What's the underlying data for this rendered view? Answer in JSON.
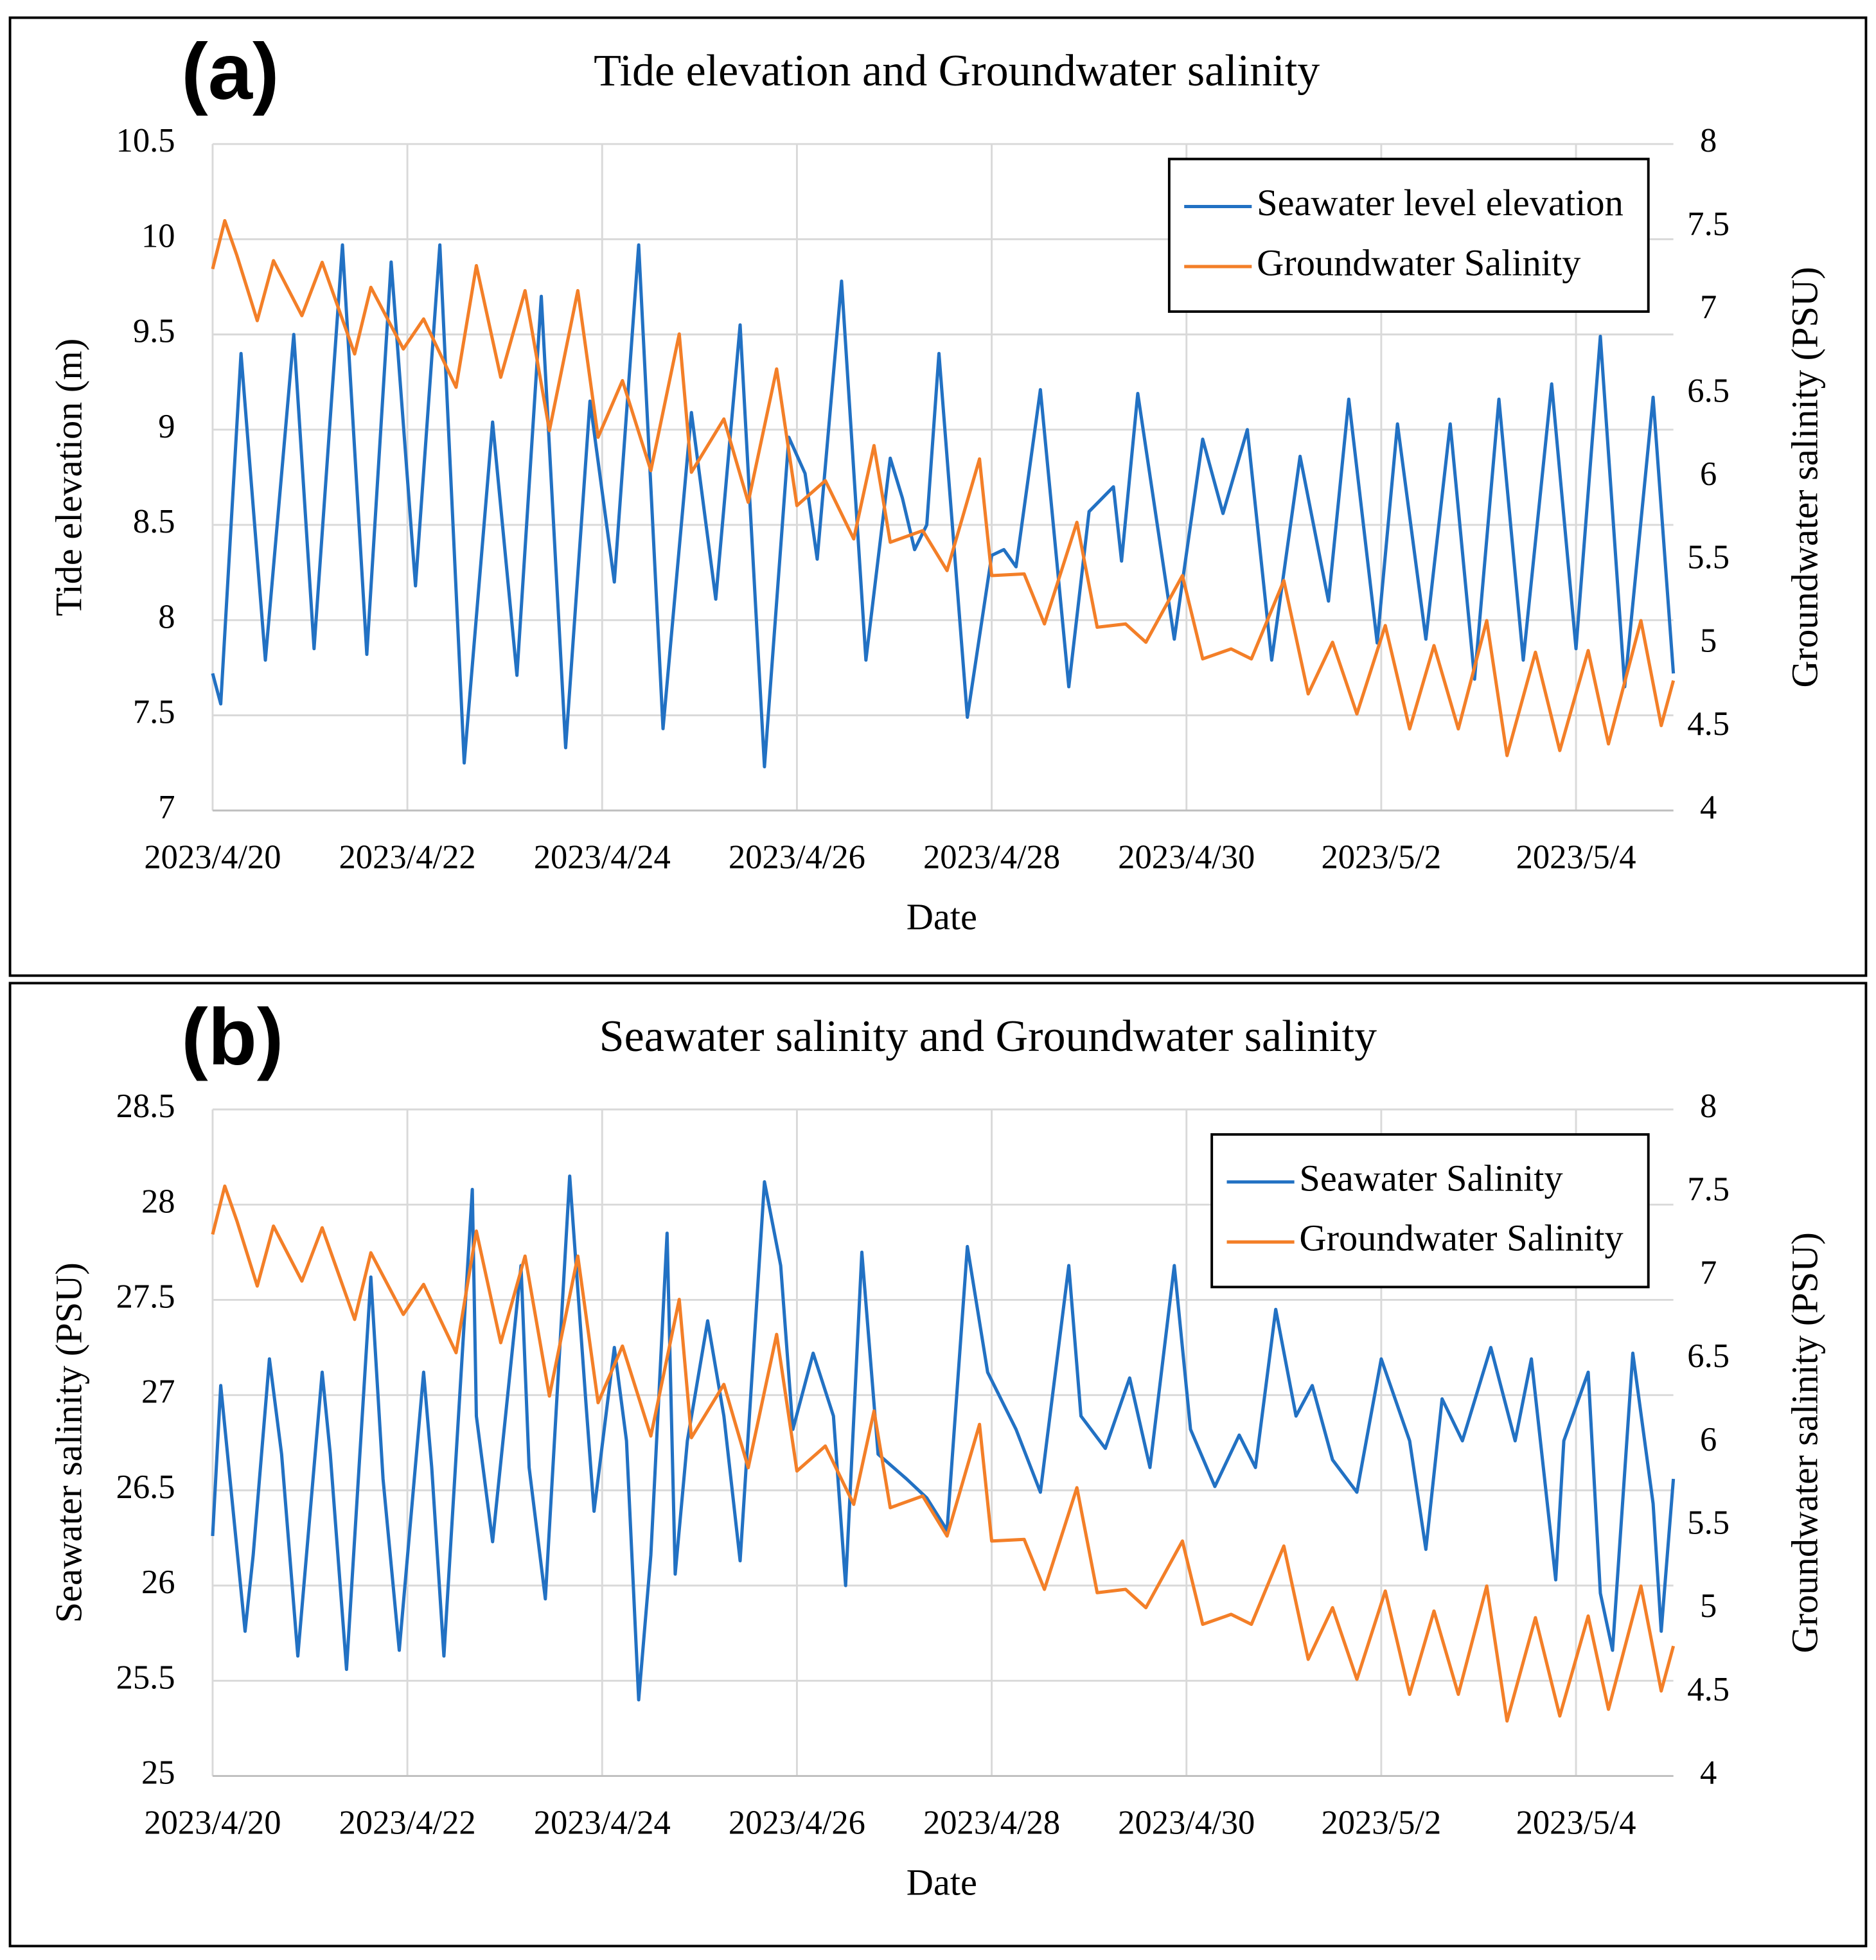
{
  "chart_data": [
    {
      "type": "line",
      "panel_label": "(a)",
      "title": "Tide elevation and Groundwater salinity",
      "xlabel": "Date",
      "ylabel": "Tide elevation (m)",
      "y2label": "Groundwater salinity (PSU)",
      "xlim": [
        "2023/4/20",
        "2023/5/5"
      ],
      "xticks": [
        "2023/4/20",
        "2023/4/22",
        "2023/4/24",
        "2023/4/26",
        "2023/4/28",
        "2023/4/30",
        "2023/5/2",
        "2023/5/4"
      ],
      "ylim": [
        7,
        10.5
      ],
      "yticks": [
        7,
        7.5,
        8,
        8.5,
        9,
        9.5,
        10,
        10.5
      ],
      "y2lim": [
        4,
        8
      ],
      "y2ticks": [
        4,
        4.5,
        5,
        5.5,
        6,
        6.5,
        7,
        7.5,
        8
      ],
      "grid": true,
      "legend": "top-right",
      "series": [
        {
          "name": "Seawater level elevation",
          "color": "#2271c3",
          "axis": "y",
          "x": [
            "2023/4/20 00:00",
            "2023/4/20 02:00",
            "2023/4/20 07:00",
            "2023/4/20 13:00",
            "2023/4/20 20:00",
            "2023/4/21 01:00",
            "2023/4/21 08:00",
            "2023/4/21 14:00",
            "2023/4/21 20:00",
            "2023/4/22 02:00",
            "2023/4/22 08:00",
            "2023/4/22 14:00",
            "2023/4/22 21:00",
            "2023/4/23 03:00",
            "2023/4/23 09:00",
            "2023/4/23 15:00",
            "2023/4/23 21:00",
            "2023/4/24 03:00",
            "2023/4/24 09:00",
            "2023/4/24 15:00",
            "2023/4/24 22:00",
            "2023/4/25 04:00",
            "2023/4/25 10:00",
            "2023/4/25 16:00",
            "2023/4/25 22:00",
            "2023/4/26 02:00",
            "2023/4/26 05:00",
            "2023/4/26 11:00",
            "2023/4/26 17:00",
            "2023/4/26 23:00",
            "2023/4/27 02:00",
            "2023/4/27 05:00",
            "2023/4/27 08:00",
            "2023/4/27 11:00",
            "2023/4/27 18:00",
            "2023/4/28 00:00",
            "2023/4/28 03:00",
            "2023/4/28 06:00",
            "2023/4/28 12:00",
            "2023/4/28 19:00",
            "2023/4/29 00:00",
            "2023/4/29 06:00",
            "2023/4/29 08:00",
            "2023/4/29 12:00",
            "2023/4/29 21:00",
            "2023/4/30 04:00",
            "2023/4/30 09:00",
            "2023/4/30 15:00",
            "2023/4/30 21:00",
            "2023/5/1 04:00",
            "2023/5/1 11:00",
            "2023/5/1 16:00",
            "2023/5/1 23:00",
            "2023/5/2 04:00",
            "2023/5/2 11:00",
            "2023/5/2 17:00",
            "2023/5/2 23:00",
            "2023/5/3 05:00",
            "2023/5/3 11:00",
            "2023/5/3 18:00",
            "2023/5/4 00:00",
            "2023/5/4 06:00",
            "2023/5/4 12:00",
            "2023/5/4 19:00",
            "2023/5/5 00:00"
          ],
          "values": [
            7.72,
            7.56,
            9.4,
            7.79,
            9.5,
            7.85,
            9.97,
            7.82,
            9.88,
            8.18,
            9.97,
            7.25,
            9.04,
            7.71,
            9.7,
            7.33,
            9.15,
            8.2,
            9.97,
            7.43,
            9.09,
            8.11,
            9.55,
            7.23,
            8.96,
            8.77,
            8.32,
            9.78,
            7.79,
            8.85,
            8.64,
            8.37,
            8.5,
            9.4,
            7.49,
            8.34,
            8.37,
            8.28,
            9.21,
            7.65,
            8.57,
            8.7,
            8.31,
            9.19,
            7.9,
            8.95,
            8.56,
            9.0,
            7.79,
            8.86,
            8.1,
            9.16,
            7.88,
            9.03,
            7.9,
            9.03,
            7.69,
            9.16,
            7.79,
            9.24,
            7.85,
            9.49,
            7.65,
            9.17,
            7.72
          ]
        },
        {
          "name": "Groundwater Salinity",
          "color": "#f37f28",
          "axis": "y2",
          "x": [
            "2023/4/20 00:00",
            "2023/4/20 03:00",
            "2023/4/20 06:00",
            "2023/4/20 11:00",
            "2023/4/20 15:00",
            "2023/4/20 22:00",
            "2023/4/21 03:00",
            "2023/4/21 11:00",
            "2023/4/21 15:00",
            "2023/4/21 23:00",
            "2023/4/22 04:00",
            "2023/4/22 12:00",
            "2023/4/22 17:00",
            "2023/4/22 23:00",
            "2023/4/23 05:00",
            "2023/4/23 11:00",
            "2023/4/23 18:00",
            "2023/4/23 23:00",
            "2023/4/24 05:00",
            "2023/4/24 12:00",
            "2023/4/24 19:00",
            "2023/4/24 22:00",
            "2023/4/25 06:00",
            "2023/4/25 12:00",
            "2023/4/25 19:00",
            "2023/4/26 00:00",
            "2023/4/26 07:00",
            "2023/4/26 14:00",
            "2023/4/26 19:00",
            "2023/4/26 23:00",
            "2023/4/27 07:00",
            "2023/4/27 13:00",
            "2023/4/27 21:00",
            "2023/4/28 00:00",
            "2023/4/28 08:00",
            "2023/4/28 13:00",
            "2023/4/28 21:00",
            "2023/4/29 02:00",
            "2023/4/29 09:00",
            "2023/4/29 14:00",
            "2023/4/29 23:00",
            "2023/4/30 04:00",
            "2023/4/30 11:00",
            "2023/4/30 16:00",
            "2023/5/1 00:00",
            "2023/5/1 06:00",
            "2023/5/1 12:00",
            "2023/5/1 18:00",
            "2023/5/2 01:00",
            "2023/5/2 07:00",
            "2023/5/2 13:00",
            "2023/5/2 19:00",
            "2023/5/3 02:00",
            "2023/5/3 07:00",
            "2023/5/3 14:00",
            "2023/5/3 20:00",
            "2023/5/4 03:00",
            "2023/5/4 08:00",
            "2023/5/4 16:00",
            "2023/5/4 21:00",
            "2023/5/5 00:00"
          ],
          "values": [
            7.25,
            7.54,
            7.33,
            6.94,
            7.3,
            6.97,
            7.29,
            6.74,
            7.14,
            6.77,
            6.95,
            6.54,
            7.27,
            6.6,
            7.12,
            6.28,
            7.12,
            6.24,
            6.58,
            6.04,
            6.86,
            6.03,
            6.35,
            5.85,
            6.65,
            5.83,
            5.98,
            5.63,
            6.19,
            5.61,
            5.68,
            5.44,
            6.11,
            5.41,
            5.42,
            5.12,
            5.73,
            5.1,
            5.12,
            5.01,
            5.41,
            4.91,
            4.97,
            4.91,
            5.38,
            4.7,
            5.01,
            4.58,
            5.11,
            4.49,
            4.99,
            4.49,
            5.14,
            4.33,
            4.95,
            4.36,
            4.96,
            4.4,
            5.14,
            4.51,
            4.78
          ]
        }
      ]
    },
    {
      "type": "line",
      "panel_label": "(b)",
      "title": "Seawater salinity and Groundwater salinity",
      "xlabel": "Date",
      "ylabel": "Seawater salinity (PSU)",
      "y2label": "Groundwater salinity (PSU)",
      "xlim": [
        "2023/4/20",
        "2023/5/5"
      ],
      "xticks": [
        "2023/4/20",
        "2023/4/22",
        "2023/4/24",
        "2023/4/26",
        "2023/4/28",
        "2023/4/30",
        "2023/5/2",
        "2023/5/4"
      ],
      "ylim": [
        25,
        28.5
      ],
      "yticks": [
        25,
        25.5,
        26,
        26.5,
        27,
        27.5,
        28,
        28.5
      ],
      "y2lim": [
        4,
        8
      ],
      "y2ticks": [
        4,
        4.5,
        5,
        5.5,
        6,
        6.5,
        7,
        7.5,
        8
      ],
      "grid": true,
      "legend": "top-right",
      "series": [
        {
          "name": "Seawater Salinity",
          "color": "#2271c3",
          "axis": "y",
          "x": [
            "2023/4/20 00:00",
            "2023/4/20 02:00",
            "2023/4/20 04:00",
            "2023/4/20 08:00",
            "2023/4/20 10:00",
            "2023/4/20 14:00",
            "2023/4/20 17:00",
            "2023/4/20 21:00",
            "2023/4/21 03:00",
            "2023/4/21 05:00",
            "2023/4/21 09:00",
            "2023/4/21 15:00",
            "2023/4/21 18:00",
            "2023/4/21 22:00",
            "2023/4/22 04:00",
            "2023/4/22 06:00",
            "2023/4/22 09:00",
            "2023/4/22 16:00",
            "2023/4/22 17:00",
            "2023/4/22 21:00",
            "2023/4/23 04:00",
            "2023/4/23 06:00",
            "2023/4/23 10:00",
            "2023/4/23 16:00",
            "2023/4/23 20:00",
            "2023/4/23 22:00",
            "2023/4/24 03:00",
            "2023/4/24 06:00",
            "2023/4/24 09:00",
            "2023/4/24 12:00",
            "2023/4/24 16:00",
            "2023/4/24 18:00",
            "2023/4/24 21:00",
            "2023/4/25 02:00",
            "2023/4/25 06:00",
            "2023/4/25 10:00",
            "2023/4/25 16:00",
            "2023/4/25 20:00",
            "2023/4/25 23:00",
            "2023/4/26 04:00",
            "2023/4/26 09:00",
            "2023/4/26 12:00",
            "2023/4/26 16:00",
            "2023/4/26 20:00",
            "2023/4/27 03:00",
            "2023/4/27 08:00",
            "2023/4/27 13:00",
            "2023/4/27 18:00",
            "2023/4/27 23:00",
            "2023/4/28 06:00",
            "2023/4/28 12:00",
            "2023/4/28 19:00",
            "2023/4/28 22:00",
            "2023/4/29 04:00",
            "2023/4/29 10:00",
            "2023/4/29 15:00",
            "2023/4/29 21:00",
            "2023/4/30 01:00",
            "2023/4/30 07:00",
            "2023/4/30 13:00",
            "2023/4/30 17:00",
            "2023/4/30 22:00",
            "2023/5/1 03:00",
            "2023/5/1 07:00",
            "2023/5/1 12:00",
            "2023/5/1 18:00",
            "2023/5/2 00:00",
            "2023/5/2 07:00",
            "2023/5/2 11:00",
            "2023/5/2 15:00",
            "2023/5/2 20:00",
            "2023/5/3 03:00",
            "2023/5/3 09:00",
            "2023/5/3 13:00",
            "2023/5/3 19:00",
            "2023/5/3 21:00",
            "2023/5/4 03:00",
            "2023/5/4 06:00",
            "2023/5/4 09:00",
            "2023/5/4 14:00",
            "2023/5/4 19:00",
            "2023/5/4 21:00",
            "2023/5/5 00:00"
          ],
          "values": [
            26.26,
            27.05,
            26.62,
            25.76,
            26.16,
            27.19,
            26.69,
            25.63,
            27.12,
            26.69,
            25.56,
            27.62,
            26.56,
            25.66,
            27.12,
            26.62,
            25.63,
            28.08,
            26.89,
            26.23,
            27.68,
            26.62,
            25.93,
            28.15,
            26.96,
            26.39,
            27.25,
            26.76,
            25.4,
            26.16,
            27.85,
            26.06,
            26.76,
            27.39,
            26.89,
            26.13,
            28.12,
            27.68,
            26.82,
            27.22,
            26.89,
            26.0,
            27.75,
            26.69,
            26.56,
            26.46,
            26.29,
            27.78,
            27.12,
            26.82,
            26.49,
            27.68,
            26.89,
            26.72,
            27.09,
            26.62,
            27.68,
            26.82,
            26.52,
            26.79,
            26.62,
            27.45,
            26.89,
            27.05,
            26.66,
            26.49,
            27.19,
            26.76,
            26.19,
            26.98,
            26.76,
            27.25,
            26.76,
            27.19,
            26.03,
            26.76,
            27.12,
            25.96,
            25.66,
            27.22,
            26.43,
            25.76,
            26.56
          ]
        },
        {
          "name": "Groundwater Salinity",
          "color": "#f37f28",
          "axis": "y2",
          "x": [
            "2023/4/20 00:00",
            "2023/4/20 03:00",
            "2023/4/20 06:00",
            "2023/4/20 11:00",
            "2023/4/20 15:00",
            "2023/4/20 22:00",
            "2023/4/21 03:00",
            "2023/4/21 11:00",
            "2023/4/21 15:00",
            "2023/4/21 23:00",
            "2023/4/22 04:00",
            "2023/4/22 12:00",
            "2023/4/22 17:00",
            "2023/4/22 23:00",
            "2023/4/23 05:00",
            "2023/4/23 11:00",
            "2023/4/23 18:00",
            "2023/4/23 23:00",
            "2023/4/24 05:00",
            "2023/4/24 12:00",
            "2023/4/24 19:00",
            "2023/4/24 22:00",
            "2023/4/25 06:00",
            "2023/4/25 12:00",
            "2023/4/25 19:00",
            "2023/4/26 00:00",
            "2023/4/26 07:00",
            "2023/4/26 14:00",
            "2023/4/26 19:00",
            "2023/4/26 23:00",
            "2023/4/27 07:00",
            "2023/4/27 13:00",
            "2023/4/27 21:00",
            "2023/4/28 00:00",
            "2023/4/28 08:00",
            "2023/4/28 13:00",
            "2023/4/28 21:00",
            "2023/4/29 02:00",
            "2023/4/29 09:00",
            "2023/4/29 14:00",
            "2023/4/29 23:00",
            "2023/4/30 04:00",
            "2023/4/30 11:00",
            "2023/4/30 16:00",
            "2023/5/1 00:00",
            "2023/5/1 06:00",
            "2023/5/1 12:00",
            "2023/5/1 18:00",
            "2023/5/2 01:00",
            "2023/5/2 07:00",
            "2023/5/2 13:00",
            "2023/5/2 19:00",
            "2023/5/3 02:00",
            "2023/5/3 07:00",
            "2023/5/3 14:00",
            "2023/5/3 20:00",
            "2023/5/4 03:00",
            "2023/5/4 08:00",
            "2023/5/4 16:00",
            "2023/5/4 21:00",
            "2023/5/5 00:00"
          ],
          "values": [
            7.25,
            7.54,
            7.33,
            6.94,
            7.3,
            6.97,
            7.29,
            6.74,
            7.14,
            6.77,
            6.95,
            6.54,
            7.27,
            6.6,
            7.12,
            6.28,
            7.12,
            6.24,
            6.58,
            6.04,
            6.86,
            6.03,
            6.35,
            5.85,
            6.65,
            5.83,
            5.98,
            5.63,
            6.19,
            5.61,
            5.68,
            5.44,
            6.11,
            5.41,
            5.42,
            5.12,
            5.73,
            5.1,
            5.12,
            5.01,
            5.41,
            4.91,
            4.97,
            4.91,
            5.38,
            4.7,
            5.01,
            4.58,
            5.11,
            4.49,
            4.99,
            4.49,
            5.14,
            4.33,
            4.95,
            4.36,
            4.96,
            4.4,
            5.14,
            4.51,
            4.78
          ]
        }
      ]
    }
  ]
}
